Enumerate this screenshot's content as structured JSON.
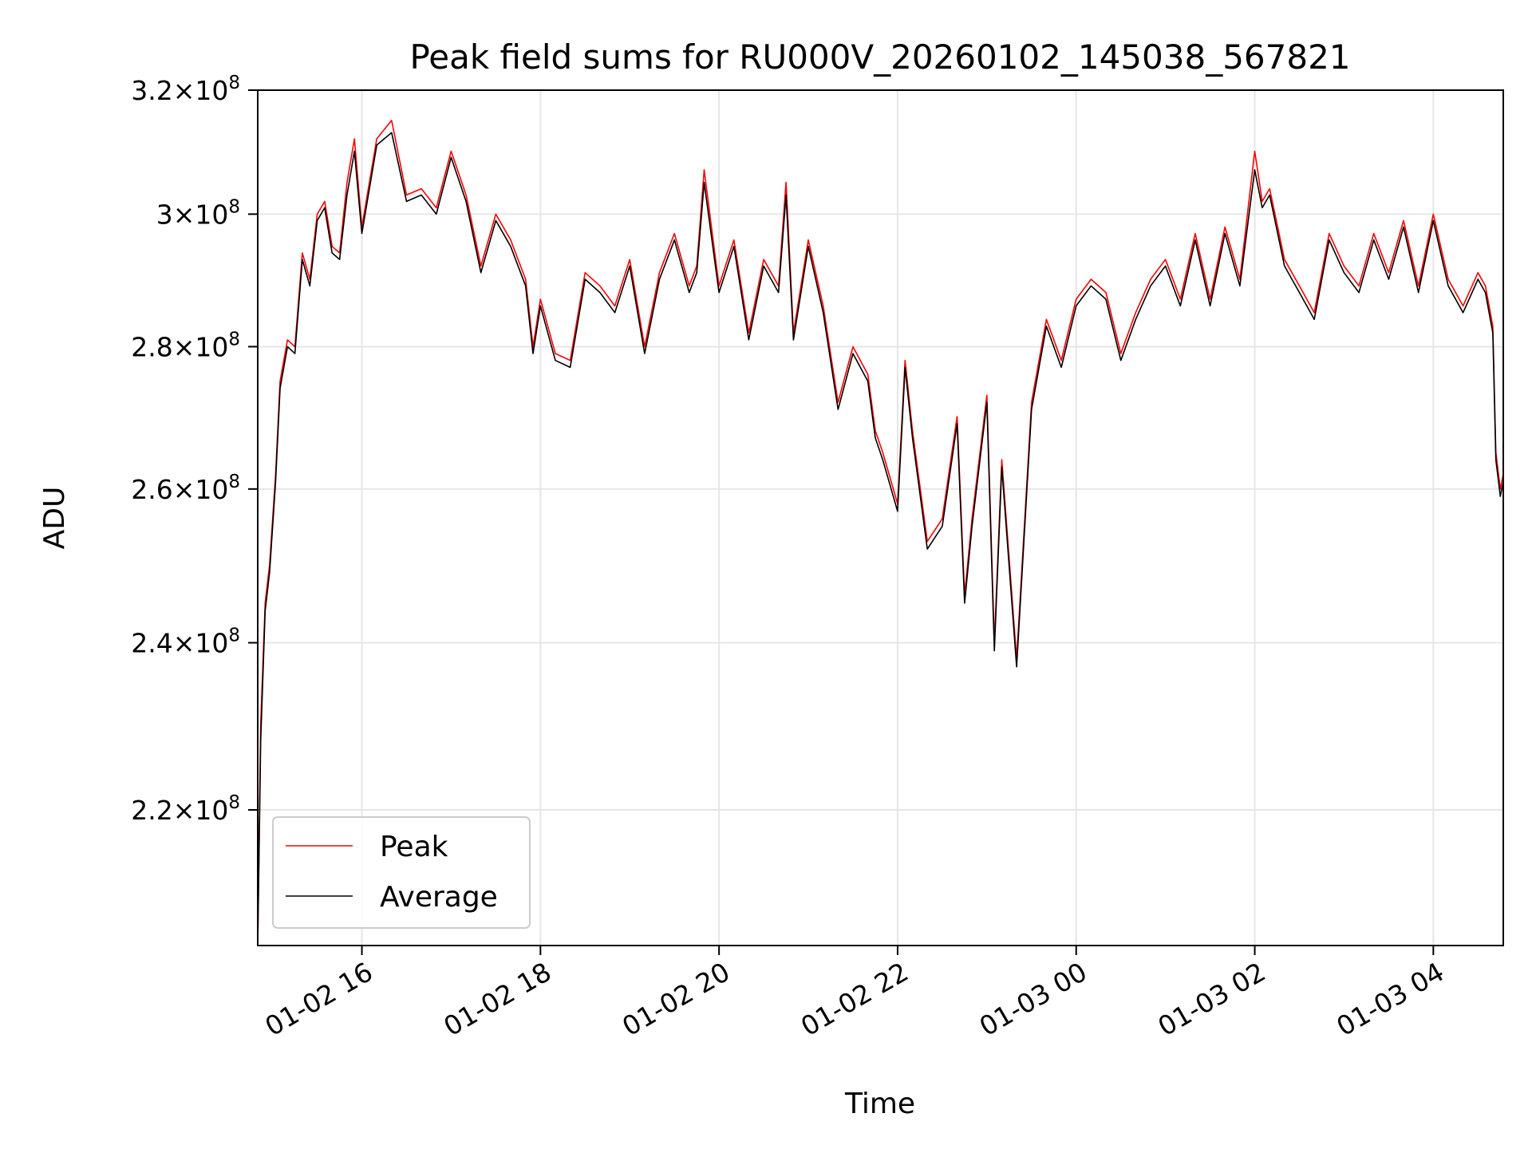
{
  "chart_data": {
    "type": "line",
    "title": "Peak field sums for RU000V_20260102_145038_567821",
    "xlabel": "Time",
    "ylabel": "ADU",
    "x_axis": {
      "kind": "datetime",
      "range": [
        "2026-01-02 14:50",
        "2026-01-03 04:47"
      ],
      "ticks": [
        {
          "value": "2026-01-02 16:00",
          "label": "01-02 16"
        },
        {
          "value": "2026-01-02 18:00",
          "label": "01-02 18"
        },
        {
          "value": "2026-01-02 20:00",
          "label": "01-02 20"
        },
        {
          "value": "2026-01-02 22:00",
          "label": "01-02 22"
        },
        {
          "value": "2026-01-03 00:00",
          "label": "01-03 00"
        },
        {
          "value": "2026-01-03 02:00",
          "label": "01-03 02"
        },
        {
          "value": "2026-01-03 04:00",
          "label": "01-03 04"
        }
      ]
    },
    "y_axis": {
      "scale": "log",
      "range": [
        205000000,
        320000000
      ],
      "ticks": [
        {
          "value": 220000000,
          "label_mantissa": "2.2",
          "label_exp": "8"
        },
        {
          "value": 240000000,
          "label_mantissa": "2.4",
          "label_exp": "8"
        },
        {
          "value": 260000000,
          "label_mantissa": "2.6",
          "label_exp": "8"
        },
        {
          "value": 280000000,
          "label_mantissa": "2.8",
          "label_exp": "8"
        },
        {
          "value": 300000000,
          "label_mantissa": "3",
          "label_exp": "8"
        },
        {
          "value": 320000000,
          "label_mantissa": "3.2",
          "label_exp": "8"
        }
      ],
      "times_symbol": "×",
      "base": "10"
    },
    "grid": true,
    "legend": {
      "placement": "lower-left",
      "entries": [
        "Peak",
        "Average"
      ]
    },
    "series": [
      {
        "name": "Peak",
        "color": "#ff0000",
        "x": [
          "2026-01-02 14:50",
          "2026-01-02 14:52",
          "2026-01-02 14:55",
          "2026-01-02 14:58",
          "2026-01-02 15:02",
          "2026-01-02 15:05",
          "2026-01-02 15:10",
          "2026-01-02 15:15",
          "2026-01-02 15:20",
          "2026-01-02 15:25",
          "2026-01-02 15:30",
          "2026-01-02 15:35",
          "2026-01-02 15:40",
          "2026-01-02 15:45",
          "2026-01-02 15:50",
          "2026-01-02 15:55",
          "2026-01-02 16:00",
          "2026-01-02 16:10",
          "2026-01-02 16:20",
          "2026-01-02 16:30",
          "2026-01-02 16:40",
          "2026-01-02 16:50",
          "2026-01-02 17:00",
          "2026-01-02 17:10",
          "2026-01-02 17:20",
          "2026-01-02 17:30",
          "2026-01-02 17:40",
          "2026-01-02 17:50",
          "2026-01-02 17:55",
          "2026-01-02 18:00",
          "2026-01-02 18:10",
          "2026-01-02 18:20",
          "2026-01-02 18:30",
          "2026-01-02 18:40",
          "2026-01-02 18:50",
          "2026-01-02 19:00",
          "2026-01-02 19:10",
          "2026-01-02 19:20",
          "2026-01-02 19:30",
          "2026-01-02 19:40",
          "2026-01-02 19:45",
          "2026-01-02 19:50",
          "2026-01-02 20:00",
          "2026-01-02 20:10",
          "2026-01-02 20:20",
          "2026-01-02 20:30",
          "2026-01-02 20:40",
          "2026-01-02 20:45",
          "2026-01-02 20:50",
          "2026-01-02 21:00",
          "2026-01-02 21:10",
          "2026-01-02 21:20",
          "2026-01-02 21:30",
          "2026-01-02 21:40",
          "2026-01-02 21:45",
          "2026-01-02 21:50",
          "2026-01-02 22:00",
          "2026-01-02 22:05",
          "2026-01-02 22:10",
          "2026-01-02 22:20",
          "2026-01-02 22:30",
          "2026-01-02 22:40",
          "2026-01-02 22:45",
          "2026-01-02 22:50",
          "2026-01-02 23:00",
          "2026-01-02 23:05",
          "2026-01-02 23:10",
          "2026-01-02 23:20",
          "2026-01-02 23:30",
          "2026-01-02 23:40",
          "2026-01-02 23:50",
          "2026-01-03 00:00",
          "2026-01-03 00:10",
          "2026-01-03 00:20",
          "2026-01-03 00:30",
          "2026-01-03 00:40",
          "2026-01-03 00:50",
          "2026-01-03 01:00",
          "2026-01-03 01:10",
          "2026-01-03 01:20",
          "2026-01-03 01:30",
          "2026-01-03 01:40",
          "2026-01-03 01:50",
          "2026-01-03 02:00",
          "2026-01-03 02:05",
          "2026-01-03 02:10",
          "2026-01-03 02:20",
          "2026-01-03 02:30",
          "2026-01-03 02:40",
          "2026-01-03 02:50",
          "2026-01-03 03:00",
          "2026-01-03 03:10",
          "2026-01-03 03:20",
          "2026-01-03 03:30",
          "2026-01-03 03:40",
          "2026-01-03 03:50",
          "2026-01-03 04:00",
          "2026-01-03 04:10",
          "2026-01-03 04:20",
          "2026-01-03 04:30",
          "2026-01-03 04:35",
          "2026-01-03 04:40",
          "2026-01-03 04:42",
          "2026-01-03 04:45",
          "2026-01-03 04:47"
        ],
        "y": [
          205000000,
          230000000,
          245000000,
          250000000,
          262000000,
          275000000,
          281000000,
          280000000,
          294000000,
          290000000,
          300000000,
          302000000,
          295000000,
          294000000,
          305000000,
          312000000,
          298000000,
          312000000,
          315000000,
          303000000,
          304000000,
          301000000,
          310000000,
          303000000,
          292000000,
          300000000,
          296000000,
          290000000,
          280000000,
          287000000,
          279000000,
          278000000,
          291000000,
          289000000,
          286000000,
          293000000,
          280000000,
          291000000,
          297000000,
          289000000,
          292000000,
          307000000,
          289000000,
          296000000,
          282000000,
          293000000,
          289000000,
          305000000,
          282000000,
          296000000,
          286000000,
          272000000,
          280000000,
          276000000,
          268000000,
          265000000,
          258000000,
          278000000,
          268000000,
          253000000,
          256000000,
          270000000,
          246000000,
          256000000,
          273000000,
          240000000,
          264000000,
          238000000,
          272000000,
          284000000,
          278000000,
          287000000,
          290000000,
          288000000,
          279000000,
          285000000,
          290000000,
          293000000,
          287000000,
          297000000,
          287000000,
          298000000,
          290000000,
          310000000,
          302000000,
          304000000,
          293000000,
          289000000,
          285000000,
          297000000,
          292000000,
          289000000,
          297000000,
          291000000,
          299000000,
          289000000,
          300000000,
          290000000,
          286000000,
          291000000,
          289000000,
          283000000,
          265000000,
          260000000,
          262000000
        ]
      },
      {
        "name": "Average",
        "color": "#000000",
        "x": [
          "2026-01-02 14:50",
          "2026-01-02 14:52",
          "2026-01-02 14:55",
          "2026-01-02 14:58",
          "2026-01-02 15:02",
          "2026-01-02 15:05",
          "2026-01-02 15:10",
          "2026-01-02 15:15",
          "2026-01-02 15:20",
          "2026-01-02 15:25",
          "2026-01-02 15:30",
          "2026-01-02 15:35",
          "2026-01-02 15:40",
          "2026-01-02 15:45",
          "2026-01-02 15:50",
          "2026-01-02 15:55",
          "2026-01-02 16:00",
          "2026-01-02 16:10",
          "2026-01-02 16:20",
          "2026-01-02 16:30",
          "2026-01-02 16:40",
          "2026-01-02 16:50",
          "2026-01-02 17:00",
          "2026-01-02 17:10",
          "2026-01-02 17:20",
          "2026-01-02 17:30",
          "2026-01-02 17:40",
          "2026-01-02 17:50",
          "2026-01-02 17:55",
          "2026-01-02 18:00",
          "2026-01-02 18:10",
          "2026-01-02 18:20",
          "2026-01-02 18:30",
          "2026-01-02 18:40",
          "2026-01-02 18:50",
          "2026-01-02 19:00",
          "2026-01-02 19:10",
          "2026-01-02 19:20",
          "2026-01-02 19:30",
          "2026-01-02 19:40",
          "2026-01-02 19:45",
          "2026-01-02 19:50",
          "2026-01-02 20:00",
          "2026-01-02 20:10",
          "2026-01-02 20:20",
          "2026-01-02 20:30",
          "2026-01-02 20:40",
          "2026-01-02 20:45",
          "2026-01-02 20:50",
          "2026-01-02 21:00",
          "2026-01-02 21:10",
          "2026-01-02 21:20",
          "2026-01-02 21:30",
          "2026-01-02 21:40",
          "2026-01-02 21:45",
          "2026-01-02 21:50",
          "2026-01-02 22:00",
          "2026-01-02 22:05",
          "2026-01-02 22:10",
          "2026-01-02 22:20",
          "2026-01-02 22:30",
          "2026-01-02 22:40",
          "2026-01-02 22:45",
          "2026-01-02 22:50",
          "2026-01-02 23:00",
          "2026-01-02 23:05",
          "2026-01-02 23:10",
          "2026-01-02 23:20",
          "2026-01-02 23:30",
          "2026-01-02 23:40",
          "2026-01-02 23:50",
          "2026-01-03 00:00",
          "2026-01-03 00:10",
          "2026-01-03 00:20",
          "2026-01-03 00:30",
          "2026-01-03 00:40",
          "2026-01-03 00:50",
          "2026-01-03 01:00",
          "2026-01-03 01:10",
          "2026-01-03 01:20",
          "2026-01-03 01:30",
          "2026-01-03 01:40",
          "2026-01-03 01:50",
          "2026-01-03 02:00",
          "2026-01-03 02:05",
          "2026-01-03 02:10",
          "2026-01-03 02:20",
          "2026-01-03 02:30",
          "2026-01-03 02:40",
          "2026-01-03 02:50",
          "2026-01-03 03:00",
          "2026-01-03 03:10",
          "2026-01-03 03:20",
          "2026-01-03 03:30",
          "2026-01-03 03:40",
          "2026-01-03 03:50",
          "2026-01-03 04:00",
          "2026-01-03 04:10",
          "2026-01-03 04:20",
          "2026-01-03 04:30",
          "2026-01-03 04:35",
          "2026-01-03 04:40",
          "2026-01-03 04:42",
          "2026-01-03 04:45",
          "2026-01-03 04:47"
        ],
        "y": [
          205000000,
          228000000,
          244000000,
          249000000,
          261000000,
          274000000,
          280000000,
          279000000,
          293000000,
          289000000,
          299000000,
          301000000,
          294000000,
          293000000,
          303000000,
          310000000,
          297000000,
          311000000,
          313000000,
          302000000,
          303000000,
          300000000,
          309000000,
          302000000,
          291000000,
          299000000,
          295000000,
          289000000,
          279000000,
          286000000,
          278000000,
          277000000,
          290000000,
          288000000,
          285000000,
          292000000,
          279000000,
          290000000,
          296000000,
          288000000,
          291000000,
          305000000,
          288000000,
          295000000,
          281000000,
          292000000,
          288000000,
          303000000,
          281000000,
          295000000,
          285000000,
          271000000,
          279000000,
          275000000,
          267000000,
          264000000,
          257000000,
          277000000,
          267000000,
          252000000,
          255000000,
          269000000,
          245000000,
          255000000,
          272000000,
          239000000,
          263000000,
          237000000,
          271000000,
          283000000,
          277000000,
          286000000,
          289000000,
          287000000,
          278000000,
          284000000,
          289000000,
          292000000,
          286000000,
          296000000,
          286000000,
          297000000,
          289000000,
          307000000,
          301000000,
          303000000,
          292000000,
          288000000,
          284000000,
          296000000,
          291000000,
          288000000,
          296000000,
          290000000,
          298000000,
          288000000,
          299000000,
          289000000,
          285000000,
          290000000,
          288000000,
          282000000,
          264000000,
          259000000,
          261000000
        ]
      }
    ]
  }
}
